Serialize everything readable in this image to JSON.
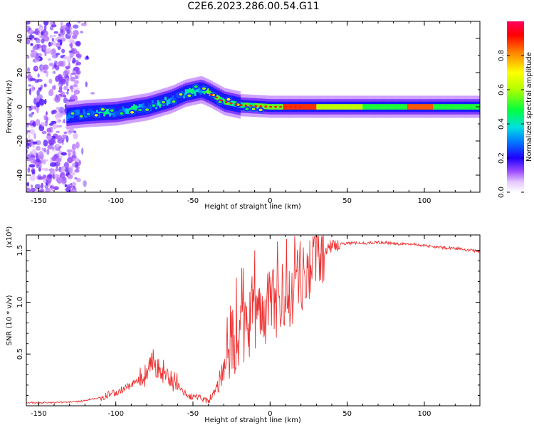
{
  "title": "C2E6.2023.286.00.54.G11",
  "chart_data": [
    {
      "type": "heatmap",
      "title": "",
      "xlabel": "Height of straight line (km)",
      "ylabel": "Frequency (Hz)",
      "xlim": [
        -158,
        136
      ],
      "ylim": [
        -50,
        50
      ],
      "xticks": [
        -150,
        -100,
        -50,
        0,
        50,
        100
      ],
      "yticks": [
        -40,
        -20,
        0,
        20,
        40
      ],
      "colorbar": {
        "label": "Normalized spectral amplitude",
        "range": [
          0,
          1
        ],
        "ticks": [
          0.0,
          0.2,
          0.4,
          0.6,
          0.8
        ],
        "tick_labels": [
          "0.0",
          "0.2",
          "0.4",
          "0.6",
          "0.8"
        ],
        "colors": [
          "#ffffff",
          "#d8b4fe",
          "#8000ff",
          "#0000ff",
          "#00c8ff",
          "#00ff80",
          "#80ff00",
          "#ffff00",
          "#ff8000",
          "#ff0000",
          "#ff0060"
        ]
      },
      "ridge": {
        "description_points_x": [
          -130,
          -120,
          -100,
          -80,
          -65,
          -55,
          -45,
          -40,
          -30,
          -20,
          0,
          50,
          100,
          136
        ],
        "description_points_y": [
          -5,
          -4,
          -3,
          0,
          4,
          8,
          10,
          8,
          3,
          1,
          0,
          0,
          0,
          0
        ],
        "peak_amplitude_x": [
          8,
          30
        ],
        "peak_amplitude_x_2": [
          90,
          105
        ]
      }
    },
    {
      "type": "line",
      "title": "",
      "xlabel": "Height of straight line (km)",
      "ylabel": "SNR (10 * v/v)",
      "y_multiplier": "(x10⁴)",
      "xlim": [
        -158,
        136
      ],
      "ylim": [
        0,
        1.65
      ],
      "xticks": [
        -150,
        -100,
        -50,
        0,
        50,
        100
      ],
      "yticks": [
        0.5,
        1.0,
        1.5
      ],
      "ytick_labels": [
        "0.5",
        "1.0",
        "1.5"
      ],
      "color": "#ee3333",
      "series": [
        {
          "name": "",
          "x": [
            -158,
            -140,
            -125,
            -110,
            -100,
            -90,
            -80,
            -76,
            -72,
            -65,
            -60,
            -55,
            -50,
            -45,
            -40,
            -35,
            -30,
            -28,
            -20,
            -10,
            -5,
            0,
            10,
            15,
            20,
            25,
            30,
            40,
            50,
            60,
            70,
            80,
            90,
            100,
            110,
            120,
            136
          ],
          "y": [
            0.03,
            0.03,
            0.04,
            0.08,
            0.13,
            0.2,
            0.3,
            0.45,
            0.35,
            0.28,
            0.2,
            0.12,
            0.08,
            0.07,
            0.05,
            0.15,
            0.35,
            0.55,
            0.7,
            0.85,
            0.9,
            0.98,
            1.05,
            1.15,
            1.25,
            1.35,
            1.45,
            1.55,
            1.57,
            1.57,
            1.58,
            1.57,
            1.56,
            1.55,
            1.53,
            1.52,
            1.49
          ]
        }
      ]
    }
  ]
}
